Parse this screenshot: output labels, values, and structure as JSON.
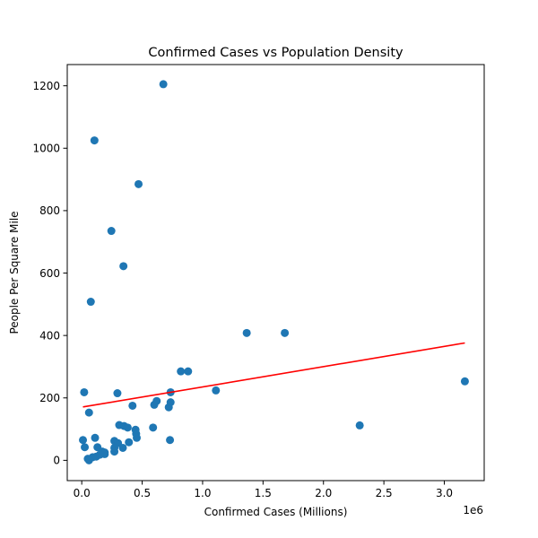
{
  "chart_data": {
    "type": "scatter",
    "title": "Confirmed Cases vs Population Density",
    "xlabel": "Confirmed Cases (Millions)",
    "ylabel": "People Per Square Mile",
    "x_offset_text": "1e6",
    "xlim": [
      -120000,
      3330000
    ],
    "ylim": [
      -65,
      1268
    ],
    "x_ticks": [
      0,
      500000,
      1000000,
      1500000,
      2000000,
      2500000,
      3000000
    ],
    "x_tick_labels": [
      "0.0",
      "0.5",
      "1.0",
      "1.5",
      "2.0",
      "2.5",
      "3.0"
    ],
    "y_ticks": [
      0,
      200,
      400,
      600,
      800,
      1000,
      1200
    ],
    "y_tick_labels": [
      "0",
      "200",
      "400",
      "600",
      "800",
      "1000",
      "1200"
    ],
    "grid": false,
    "legend": "none",
    "colors": {
      "points": "#1f77b4",
      "trendline": "#ff0000"
    },
    "series": [
      {
        "kind": "points",
        "x": [
          675000,
          105000,
          470000,
          245000,
          345000,
          75000,
          1365000,
          1680000,
          20000,
          60000,
          295000,
          820000,
          880000,
          735000,
          1110000,
          600000,
          620000,
          420000,
          720000,
          735000,
          2300000,
          3170000,
          10000,
          25000,
          110000,
          130000,
          170000,
          190000,
          90000,
          50000,
          60000,
          120000,
          270000,
          270000,
          310000,
          350000,
          380000,
          340000,
          300000,
          270000,
          390000,
          445000,
          450000,
          455000,
          590000,
          730000,
          190000,
          150000
        ],
        "y": [
          1205,
          1025,
          885,
          735,
          622,
          508,
          408,
          408,
          218,
          153,
          215,
          285,
          285,
          218,
          224,
          178,
          190,
          175,
          170,
          186,
          112,
          253,
          65,
          42,
          72,
          42,
          28,
          20,
          10,
          5,
          0,
          12,
          62,
          28,
          113,
          110,
          105,
          40,
          55,
          40,
          58,
          98,
          85,
          72,
          105,
          65,
          25,
          18
        ]
      },
      {
        "kind": "trendline",
        "x": [
          10000,
          3170000
        ],
        "y": [
          171,
          376
        ]
      }
    ]
  }
}
